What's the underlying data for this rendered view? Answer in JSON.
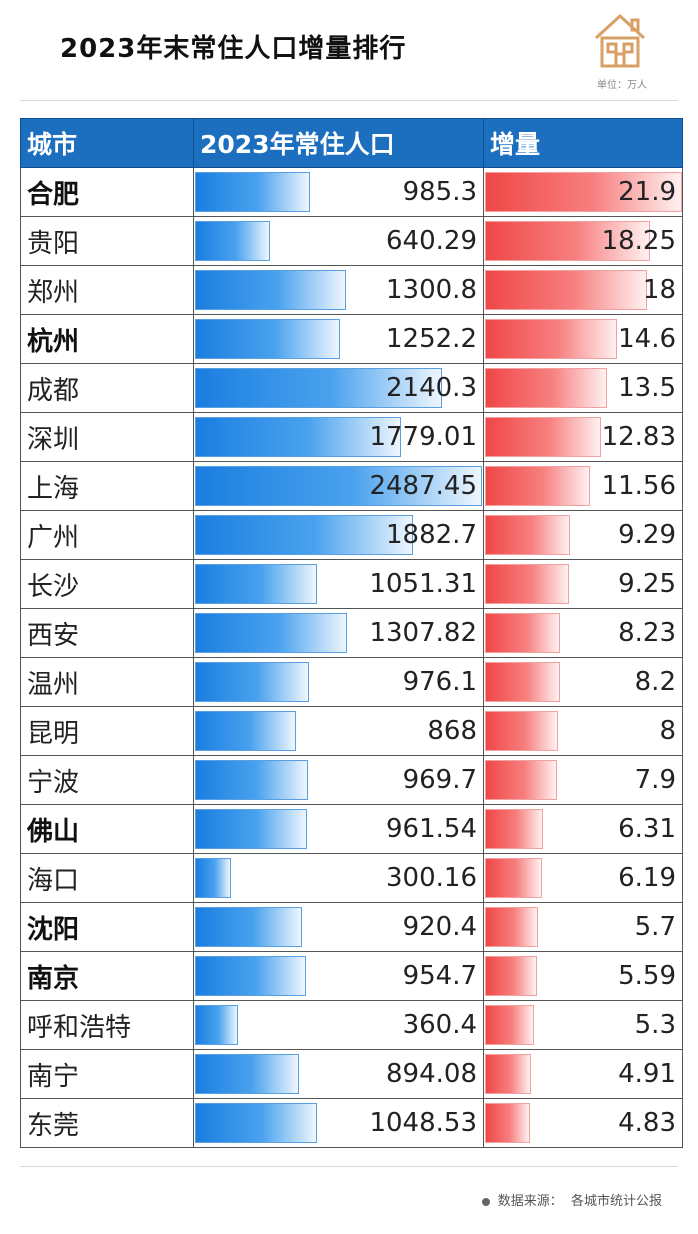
{
  "header": {
    "title": "2023年末常住人口增量排行",
    "unit_label": "单位：万人",
    "logo_icon": "house-icon",
    "logo_color": "#d9a066"
  },
  "colors": {
    "header_bg": "#1c6fbf",
    "population_bar": "#1a7ee0",
    "increase_bar": "#f04747"
  },
  "footer": {
    "source_label": "数据来源：",
    "source_text": "各城市统计公报"
  },
  "chart_data": {
    "type": "table",
    "columns": [
      "城市",
      "2023年常住人口",
      "增量"
    ],
    "population_max": 2487.45,
    "increase_max": 21.9,
    "rows": [
      {
        "city": "合肥",
        "population": "985.3",
        "increase": "21.9",
        "bold": true
      },
      {
        "city": "贵阳",
        "population": "640.29",
        "increase": "18.25",
        "bold": false
      },
      {
        "city": "郑州",
        "population": "1300.8",
        "increase": "18",
        "bold": false
      },
      {
        "city": "杭州",
        "population": "1252.2",
        "increase": "14.6",
        "bold": true
      },
      {
        "city": "成都",
        "population": "2140.3",
        "increase": "13.5",
        "bold": false
      },
      {
        "city": "深圳",
        "population": "1779.01",
        "increase": "12.83",
        "bold": false
      },
      {
        "city": "上海",
        "population": "2487.45",
        "increase": "11.56",
        "bold": false
      },
      {
        "city": "广州",
        "population": "1882.7",
        "increase": "9.29",
        "bold": false
      },
      {
        "city": "长沙",
        "population": "1051.31",
        "increase": "9.25",
        "bold": false
      },
      {
        "city": "西安",
        "population": "1307.82",
        "increase": "8.23",
        "bold": false
      },
      {
        "city": "温州",
        "population": "976.1",
        "increase": "8.2",
        "bold": false
      },
      {
        "city": "昆明",
        "population": "868",
        "increase": "8",
        "bold": false
      },
      {
        "city": "宁波",
        "population": "969.7",
        "increase": "7.9",
        "bold": false
      },
      {
        "city": "佛山",
        "population": "961.54",
        "increase": "6.31",
        "bold": true
      },
      {
        "city": "海口",
        "population": "300.16",
        "increase": "6.19",
        "bold": false
      },
      {
        "city": "沈阳",
        "population": "920.4",
        "increase": "5.7",
        "bold": true
      },
      {
        "city": "南京",
        "population": "954.7",
        "increase": "5.59",
        "bold": true
      },
      {
        "city": "呼和浩特",
        "population": "360.4",
        "increase": "5.3",
        "bold": false
      },
      {
        "city": "南宁",
        "population": "894.08",
        "increase": "4.91",
        "bold": false
      },
      {
        "city": "东莞",
        "population": "1048.53",
        "increase": "4.83",
        "bold": false
      }
    ]
  }
}
